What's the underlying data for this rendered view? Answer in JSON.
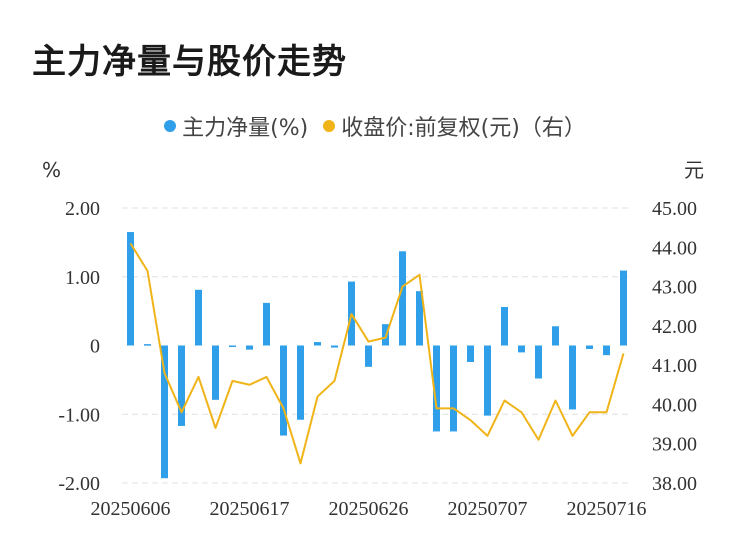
{
  "title": "主力净量与股价走势",
  "legend": {
    "series1_label": "主力净量(%)",
    "series2_label": "收盘价:前复权(元)（右）"
  },
  "colors": {
    "bars": "#2e9fe8",
    "line": "#f0b418",
    "grid": "#e0e0e0"
  },
  "chart_data": {
    "type": "bar+line",
    "title": "主力净量与股价走势",
    "y_left_label": "%",
    "y_right_label": "元",
    "y_left_ticks": [
      "2.00",
      "1.00",
      "0",
      "-1.00",
      "-2.00"
    ],
    "y_right_ticks": [
      "45.00",
      "44.00",
      "43.00",
      "42.00",
      "41.00",
      "40.00",
      "39.00",
      "38.00"
    ],
    "ylim_left": [
      -2,
      2
    ],
    "ylim_right": [
      38,
      45
    ],
    "x_tick_labels": [
      "20250606",
      "20250617",
      "20250626",
      "20250707",
      "20250716"
    ],
    "x_tick_indices": [
      0,
      7,
      14,
      21,
      28
    ],
    "categories": [
      "d1",
      "d2",
      "d3",
      "d4",
      "d5",
      "d6",
      "d7",
      "d8",
      "d9",
      "d10",
      "d11",
      "d12",
      "d13",
      "d14",
      "d15",
      "d16",
      "d17",
      "d18",
      "d19",
      "d20",
      "d21",
      "d22",
      "d23",
      "d24",
      "d25",
      "d26",
      "d27",
      "d28",
      "d29",
      "d30"
    ],
    "series": [
      {
        "name": "主力净量(%)",
        "axis": "left",
        "kind": "bar",
        "values": [
          1.65,
          0.02,
          -1.93,
          -1.17,
          0.81,
          -0.79,
          0.0,
          -0.06,
          0.62,
          -1.31,
          -1.08,
          0.05,
          -0.03,
          0.93,
          -0.31,
          0.31,
          1.37,
          0.79,
          -1.25,
          -1.25,
          -0.24,
          -1.02,
          0.56,
          -0.1,
          -0.48,
          0.28,
          -0.93,
          -0.05,
          -0.14,
          1.09
        ]
      },
      {
        "name": "收盘价:前复权(元)（右）",
        "axis": "right",
        "kind": "line",
        "values": [
          44.1,
          43.4,
          40.8,
          39.8,
          40.7,
          39.4,
          40.6,
          40.5,
          40.7,
          39.9,
          38.5,
          40.2,
          40.6,
          42.3,
          41.6,
          41.7,
          43.0,
          43.3,
          39.9,
          39.9,
          39.6,
          39.2,
          40.1,
          39.8,
          39.1,
          40.1,
          39.2,
          39.8,
          39.8,
          41.3
        ]
      }
    ]
  }
}
